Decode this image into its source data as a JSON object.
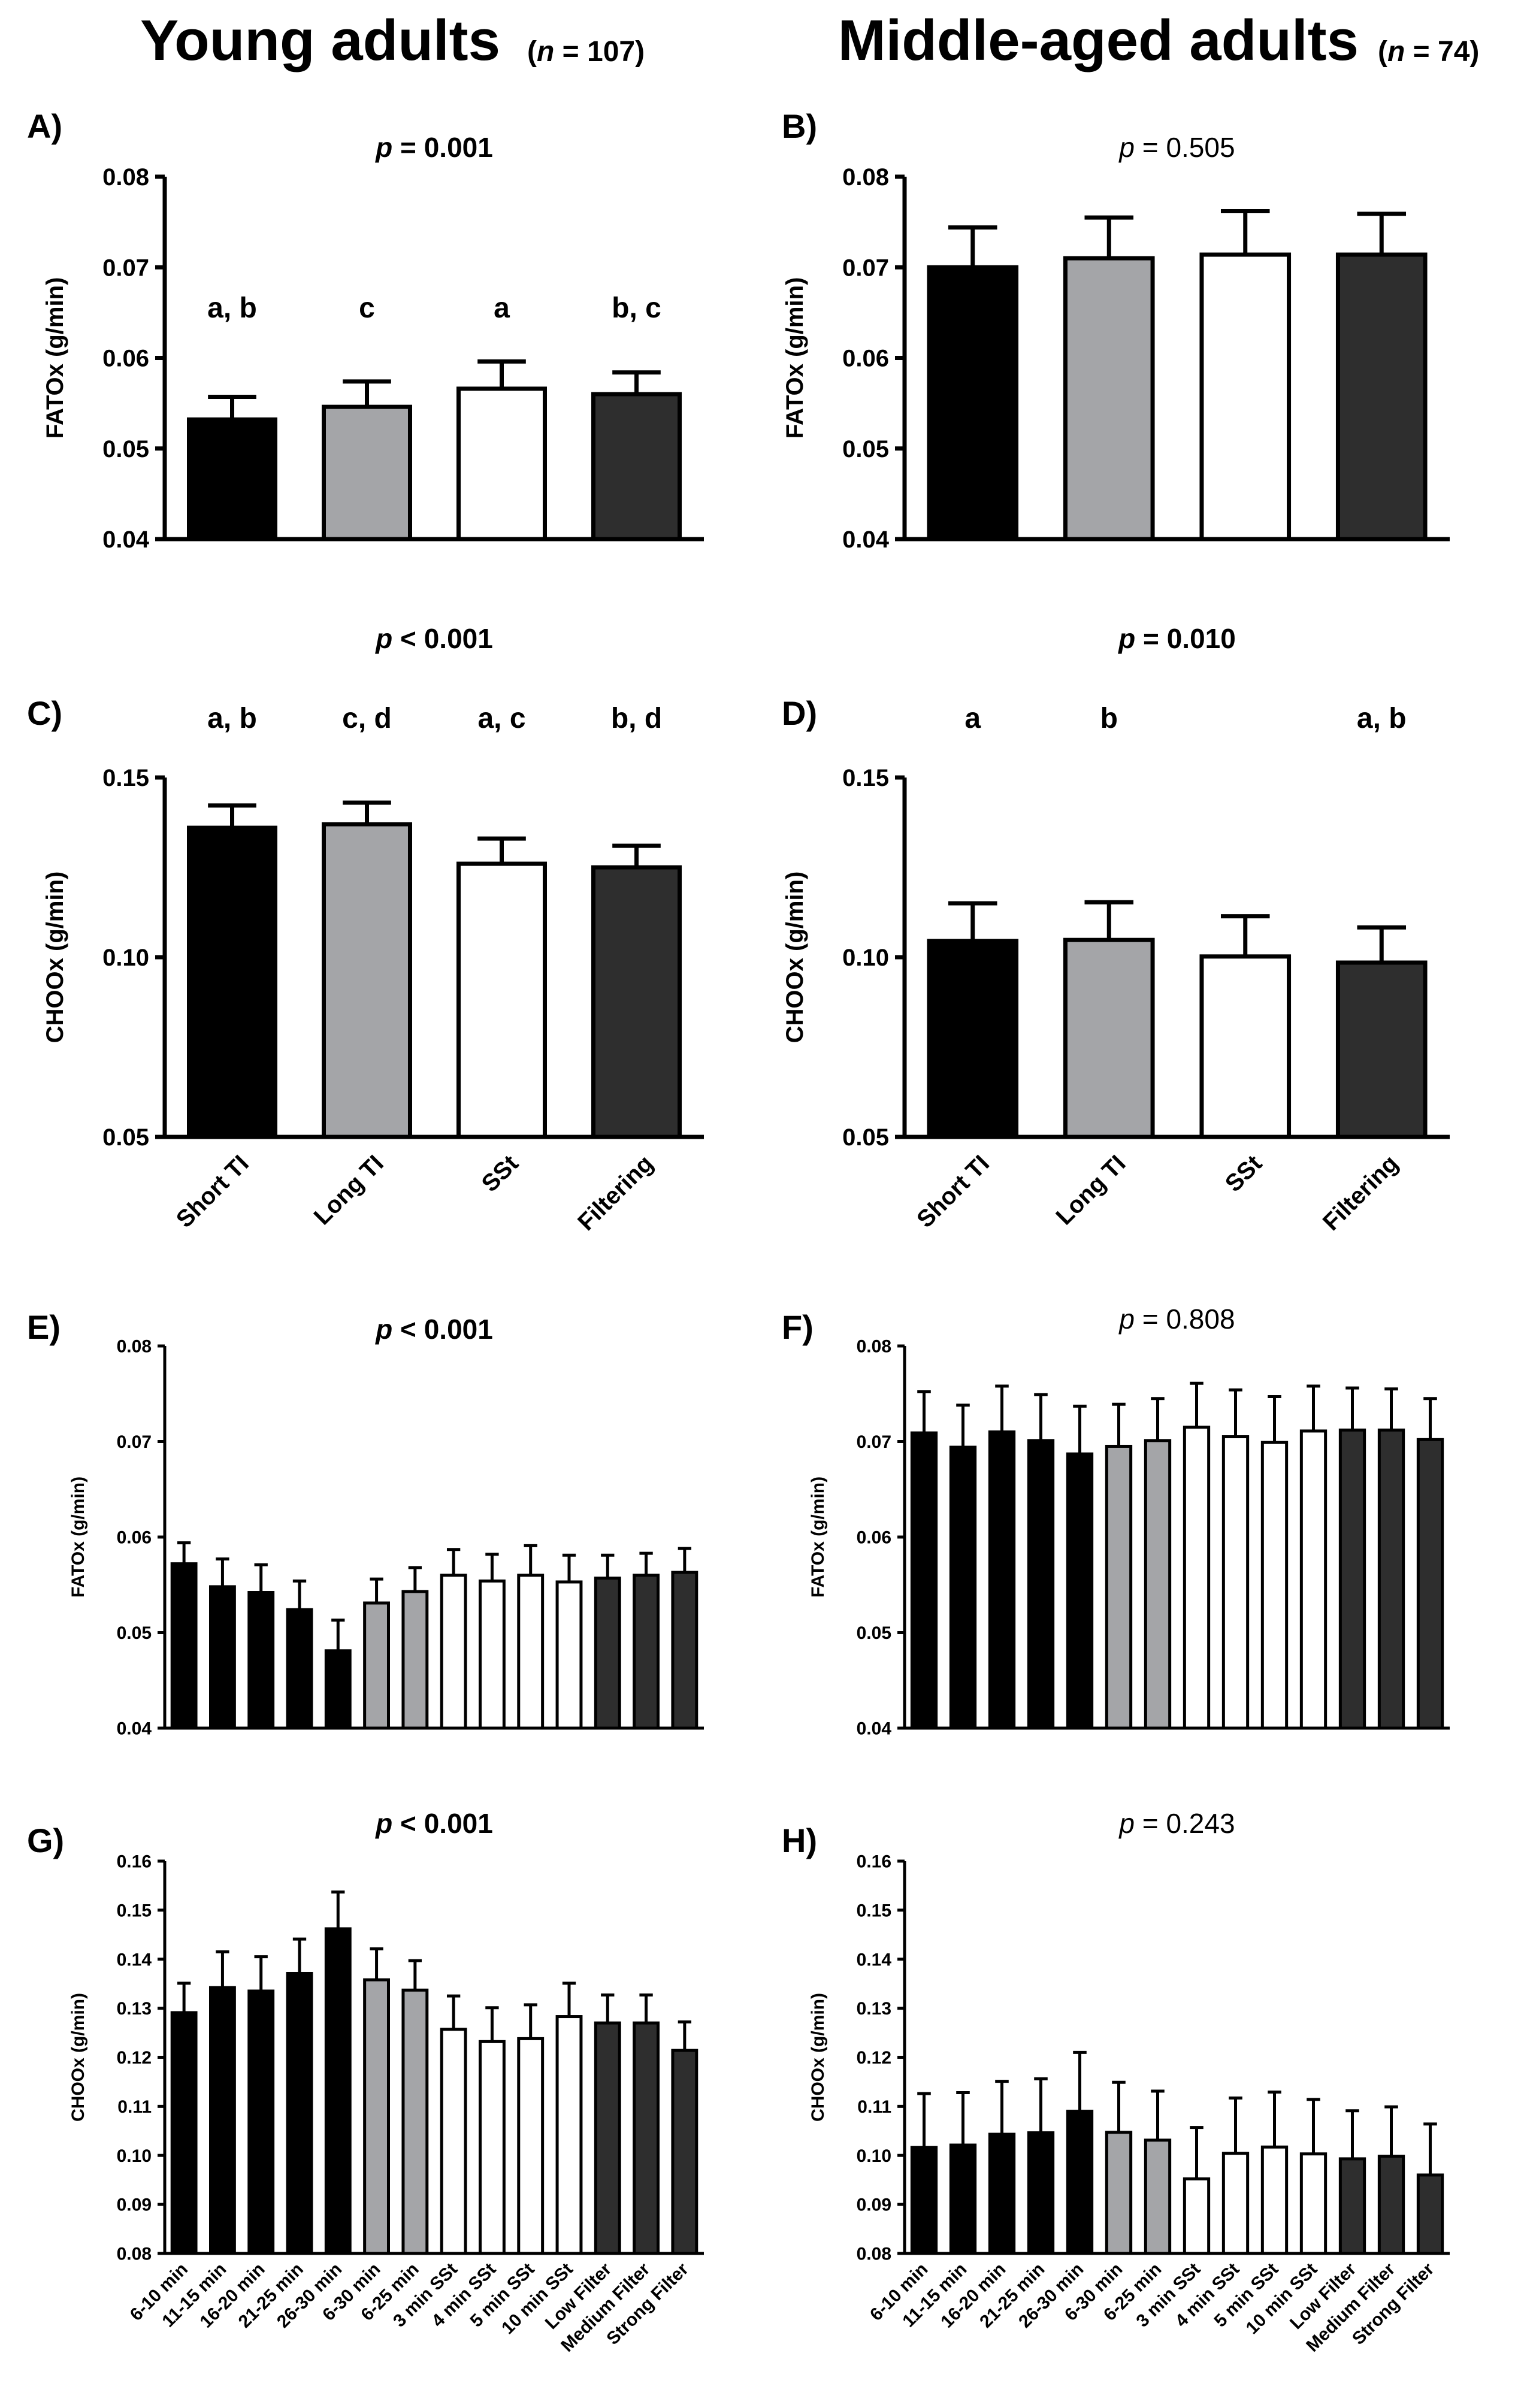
{
  "headers": {
    "left": {
      "title": "Young adults",
      "n_open": "(",
      "n_var": "n",
      "n_rest": " = 107)"
    },
    "right": {
      "title": "Middle-aged adults",
      "n_open": "(",
      "n_var": "n",
      "n_rest": " = 74)"
    }
  },
  "colors": {
    "black": "#000000",
    "grey": "#a4a5a8",
    "white": "#ffffff",
    "dark": "#2e2e2e",
    "stroke": "#000000"
  },
  "chart_data": [
    {
      "id": "A",
      "panel_label": "A)",
      "type": "bar",
      "ylabel": "FATOx (g/min)",
      "p_prefix": "p",
      "p_rest": " = 0.001",
      "p_bold": true,
      "ylim": [
        0.04,
        0.08
      ],
      "yticks": [
        "0.04",
        "0.05",
        "0.06",
        "0.07",
        "0.08"
      ],
      "categories": [
        "Short TI",
        "Long TI",
        "SSt",
        "Filtering"
      ],
      "show_categories": false,
      "values": [
        0.0532,
        0.0546,
        0.0566,
        0.056
      ],
      "errors": [
        0.0025,
        0.0028,
        0.003,
        0.0024
      ],
      "bar_colors": [
        "black",
        "grey",
        "white",
        "dark"
      ],
      "letters": [
        "a, b",
        "c",
        "a",
        "b, c"
      ]
    },
    {
      "id": "B",
      "panel_label": "B)",
      "type": "bar",
      "ylabel": "FATOx (g/min)",
      "p_prefix": "p",
      "p_rest": " = 0.505",
      "p_bold": false,
      "ylim": [
        0.04,
        0.08
      ],
      "yticks": [
        "0.04",
        "0.05",
        "0.06",
        "0.07",
        "0.08"
      ],
      "categories": [
        "Short TI",
        "Long TI",
        "SSt",
        "Filtering"
      ],
      "show_categories": false,
      "values": [
        0.07,
        0.071,
        0.0714,
        0.0714
      ],
      "errors": [
        0.0044,
        0.0045,
        0.0048,
        0.0045
      ],
      "bar_colors": [
        "black",
        "grey",
        "white",
        "dark"
      ],
      "letters": [
        "",
        "",
        "",
        ""
      ]
    },
    {
      "id": "C",
      "panel_label": "C)",
      "type": "bar",
      "ylabel": "CHOOx (g/min)",
      "p_prefix": "p",
      "p_rest": " < 0.001",
      "p_bold": true,
      "ylim": [
        0.05,
        0.15
      ],
      "yticks": [
        "0.05",
        "0.10",
        "0.15"
      ],
      "categories": [
        "Short TI",
        "Long TI",
        "SSt",
        "Filtering"
      ],
      "show_categories": true,
      "values": [
        0.136,
        0.137,
        0.126,
        0.125
      ],
      "errors": [
        0.0062,
        0.006,
        0.007,
        0.006
      ],
      "bar_colors": [
        "black",
        "grey",
        "white",
        "dark"
      ],
      "letters": [
        "a, b",
        "c, d",
        "a, c",
        "b, d"
      ]
    },
    {
      "id": "D",
      "panel_label": "D)",
      "type": "bar",
      "ylabel": "CHOOx (g/min)",
      "p_prefix": "p",
      "p_rest": " = 0.010",
      "p_bold": true,
      "ylim": [
        0.05,
        0.15
      ],
      "yticks": [
        "0.05",
        "0.10",
        "0.15"
      ],
      "categories": [
        "Short TI",
        "Long TI",
        "SSt",
        "Filtering"
      ],
      "show_categories": true,
      "values": [
        0.1045,
        0.1048,
        0.1002,
        0.0985
      ],
      "errors": [
        0.0105,
        0.0105,
        0.0112,
        0.0098
      ],
      "bar_colors": [
        "black",
        "grey",
        "white",
        "dark"
      ],
      "letters": [
        "a",
        "b",
        "",
        "a, b"
      ]
    },
    {
      "id": "E",
      "panel_label": "E)",
      "type": "bar",
      "ylabel": "FATOx (g/min)",
      "p_prefix": "p",
      "p_rest": " < 0.001",
      "p_bold": true,
      "ylim": [
        0.04,
        0.08
      ],
      "yticks": [
        "0.04",
        "0.05",
        "0.06",
        "0.07",
        "0.08"
      ],
      "categories": [
        "6-10 min",
        "11-15 min",
        "16-20 min",
        "21-25 min",
        "26-30 min",
        "6-30 min",
        "6-25 min",
        "3 min SSt",
        "4 min SSt",
        "5 min SSt",
        "10 min SSt",
        "Low Filter",
        "Medium Filter",
        "Strong Filter"
      ],
      "show_categories": false,
      "values": [
        0.0572,
        0.0548,
        0.0542,
        0.0524,
        0.0481,
        0.0531,
        0.0543,
        0.056,
        0.0554,
        0.056,
        0.0553,
        0.0557,
        0.056,
        0.0563
      ],
      "errors": [
        0.0022,
        0.0029,
        0.0029,
        0.003,
        0.0032,
        0.0025,
        0.0025,
        0.0027,
        0.0028,
        0.0031,
        0.0028,
        0.0024,
        0.0023,
        0.0025
      ],
      "bar_colors": [
        "black",
        "black",
        "black",
        "black",
        "black",
        "grey",
        "grey",
        "white",
        "white",
        "white",
        "white",
        "dark",
        "dark",
        "dark"
      ],
      "letters": []
    },
    {
      "id": "F",
      "panel_label": "F)",
      "type": "bar",
      "ylabel": "FATOx (g/min)",
      "p_prefix": "p",
      "p_rest": " = 0.808",
      "p_bold": false,
      "ylim": [
        0.04,
        0.08
      ],
      "yticks": [
        "0.04",
        "0.05",
        "0.06",
        "0.07",
        "0.08"
      ],
      "categories": [
        "6-10 min",
        "11-15 min",
        "16-20 min",
        "21-25 min",
        "26-30 min",
        "6-30 min",
        "6-25 min",
        "3 min SSt",
        "4 min SSt",
        "5 min SSt",
        "10 min SSt",
        "Low Filter",
        "Medium Filter",
        "Strong Filter"
      ],
      "show_categories": false,
      "values": [
        0.0709,
        0.0694,
        0.071,
        0.0701,
        0.0687,
        0.0695,
        0.0701,
        0.0715,
        0.0705,
        0.0699,
        0.0711,
        0.0712,
        0.0712,
        0.0702
      ],
      "errors": [
        0.0043,
        0.0044,
        0.0048,
        0.0048,
        0.005,
        0.0044,
        0.0044,
        0.0046,
        0.0049,
        0.0048,
        0.0047,
        0.0044,
        0.0043,
        0.0043
      ],
      "bar_colors": [
        "black",
        "black",
        "black",
        "black",
        "black",
        "grey",
        "grey",
        "white",
        "white",
        "white",
        "white",
        "dark",
        "dark",
        "dark"
      ],
      "letters": []
    },
    {
      "id": "G",
      "panel_label": "G)",
      "type": "bar",
      "ylabel": "CHOOx (g/min)",
      "p_prefix": "p",
      "p_rest": " < 0.001",
      "p_bold": true,
      "ylim": [
        0.08,
        0.16
      ],
      "yticks": [
        "0.08",
        "0.09",
        "0.10",
        "0.11",
        "0.12",
        "0.13",
        "0.14",
        "0.15",
        "0.16"
      ],
      "categories": [
        "6-10 min",
        "11-15 min",
        "16-20 min",
        "21-25 min",
        "26-30 min",
        "6-30 min",
        "6-25 min",
        "3 min SSt",
        "4 min SSt",
        "5 min SSt",
        "10 min SSt",
        "Low Filter",
        "Medium Filter",
        "Strong Filter"
      ],
      "show_categories": true,
      "values": [
        0.1291,
        0.1342,
        0.1335,
        0.1371,
        0.1462,
        0.1358,
        0.1337,
        0.1257,
        0.1232,
        0.1238,
        0.1283,
        0.127,
        0.127,
        0.1214
      ],
      "errors": [
        0.006,
        0.0073,
        0.007,
        0.007,
        0.0075,
        0.0063,
        0.006,
        0.0068,
        0.0069,
        0.0069,
        0.0068,
        0.0057,
        0.0057,
        0.0058
      ],
      "bar_colors": [
        "black",
        "black",
        "black",
        "black",
        "black",
        "grey",
        "grey",
        "white",
        "white",
        "white",
        "white",
        "dark",
        "dark",
        "dark"
      ],
      "letters": []
    },
    {
      "id": "H",
      "panel_label": "H)",
      "type": "bar",
      "ylabel": "CHOOx (g/min)",
      "p_prefix": "p",
      "p_rest": " = 0.243",
      "p_bold": false,
      "ylim": [
        0.08,
        0.16
      ],
      "yticks": [
        "0.08",
        "0.09",
        "0.10",
        "0.11",
        "0.12",
        "0.13",
        "0.14",
        "0.15",
        "0.16"
      ],
      "categories": [
        "6-10 min",
        "11-15 min",
        "16-20 min",
        "21-25 min",
        "26-30 min",
        "6-30 min",
        "6-25 min",
        "3 min SSt",
        "4 min SSt",
        "5 min SSt",
        "10 min SSt",
        "Low Filter",
        "Medium Filter",
        "Strong Filter"
      ],
      "show_categories": true,
      "values": [
        0.1016,
        0.1021,
        0.1043,
        0.1046,
        0.109,
        0.1047,
        0.1031,
        0.0952,
        0.1004,
        0.1017,
        0.1003,
        0.0993,
        0.0998,
        0.096
      ],
      "errors": [
        0.011,
        0.0107,
        0.0108,
        0.011,
        0.012,
        0.0102,
        0.01,
        0.0105,
        0.0113,
        0.0112,
        0.0111,
        0.0098,
        0.0101,
        0.0104
      ],
      "bar_colors": [
        "black",
        "black",
        "black",
        "black",
        "black",
        "grey",
        "grey",
        "white",
        "white",
        "white",
        "white",
        "dark",
        "dark",
        "dark"
      ],
      "letters": []
    }
  ]
}
